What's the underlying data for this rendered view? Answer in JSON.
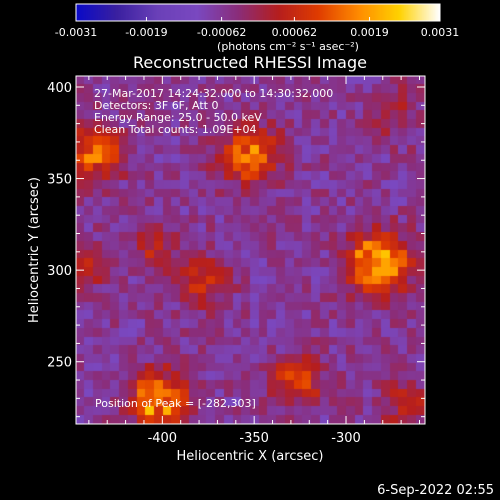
{
  "footer": {
    "date_stamp": "6-Sep-2022 02:55"
  },
  "chart_data": {
    "type": "heatmap",
    "title": "Reconstructed RHESSI Image",
    "xlabel": "Heliocentric X (arcsec)",
    "ylabel": "Heliocentric Y (arcsec)",
    "xlim": [
      -447,
      -257
    ],
    "ylim": [
      216,
      406
    ],
    "x_ticks": [
      -400,
      -350,
      -300
    ],
    "y_ticks": [
      250,
      300,
      350,
      400
    ],
    "grid": false,
    "grid_size": [
      40,
      40
    ],
    "colormap": [
      "#0a0ac8",
      "#3a20a0",
      "#6a40b8",
      "#7a48c0",
      "#8a2d7a",
      "#b51e1e",
      "#e03c00",
      "#ff8c00",
      "#ffd200",
      "#ffffff"
    ],
    "colorbar": {
      "ticks": [
        "-0.0031",
        "-0.0019",
        "-0.00062",
        "0.00062",
        "0.0019",
        "0.0031"
      ],
      "range": [
        -0.0031,
        0.0031
      ],
      "unit_label": "(photons cm⁻² s⁻¹ asec⁻²)"
    },
    "annotations": [
      "27-Mar-2017 14:24:32.000 to 14:30:32.000",
      "Detectors: 3F 6F, Att 0",
      "Energy Range: 25.0 - 50.0 keV",
      "Clean     Total counts: 1.09E+04"
    ],
    "peak_label": "Position of Peak = [-282,303]",
    "sources": [
      {
        "x": -282,
        "y": 303,
        "sigma": 11,
        "amp": 0.0031
      },
      {
        "x": -436,
        "y": 364,
        "sigma": 10,
        "amp": 0.0022
      },
      {
        "x": -353,
        "y": 363,
        "sigma": 11,
        "amp": 0.0021
      },
      {
        "x": -401,
        "y": 228,
        "sigma": 11,
        "amp": 0.0025
      },
      {
        "x": -326,
        "y": 240,
        "sigma": 9,
        "amp": 0.0017
      },
      {
        "x": -378,
        "y": 294,
        "sigma": 10,
        "amp": 0.0012
      },
      {
        "x": -267,
        "y": 226,
        "sigma": 9,
        "amp": 0.0011
      },
      {
        "x": -404,
        "y": 312,
        "sigma": 8,
        "amp": 0.0009
      },
      {
        "x": -440,
        "y": 302,
        "sigma": 9,
        "amp": 0.0008
      },
      {
        "x": -273,
        "y": 385,
        "sigma": 10,
        "amp": 0.0008
      }
    ],
    "background_level": -0.0006
  }
}
